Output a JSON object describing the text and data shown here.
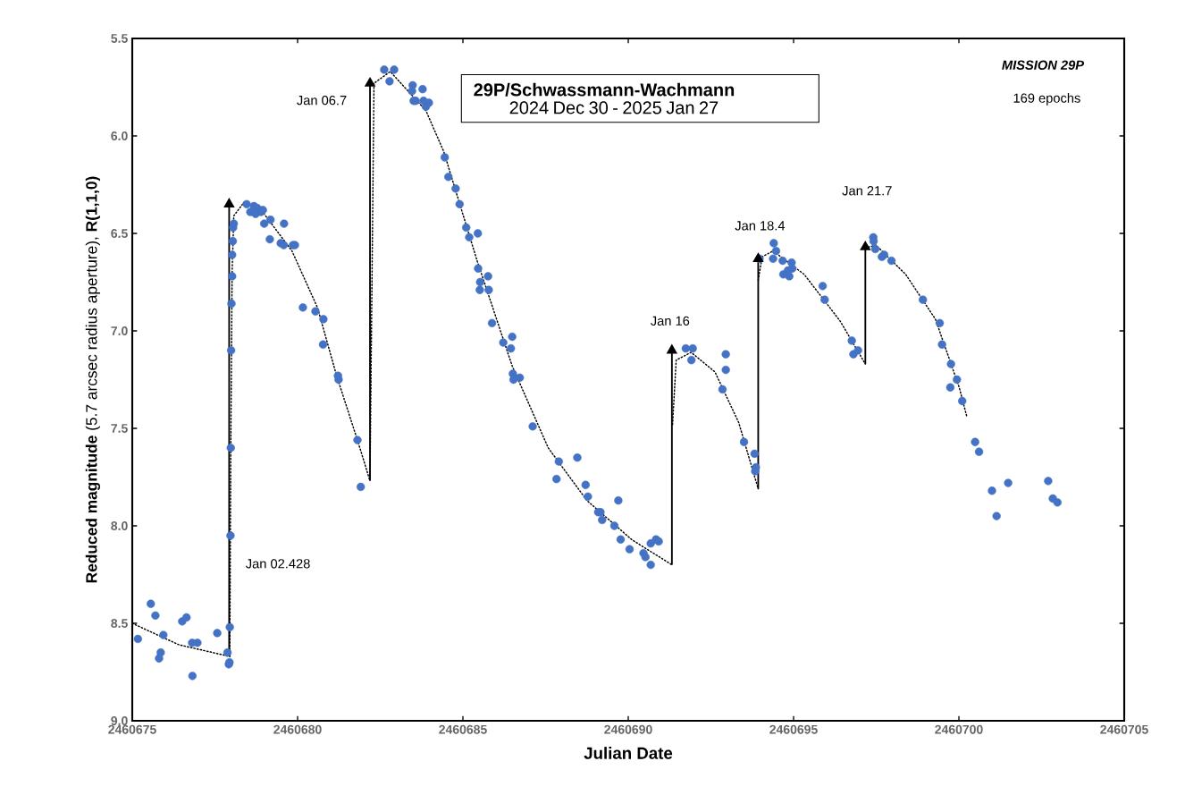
{
  "chart_data": {
    "type": "scatter",
    "title": "29P/Schwassmann-Wachmann",
    "subtitle": "2024 Dec 30 - 2025 Jan 27",
    "xlabel": "Julian Date",
    "ylabel": "**Reduced magnitude** (5.7 arcsec radius aperture),  **R(1,1,0)**",
    "xlim": [
      2460675,
      2460705
    ],
    "xticks": [
      2460675,
      2460680,
      2460685,
      2460690,
      2460695,
      2460700,
      2460705
    ],
    "ylim": [
      9.0,
      5.5
    ],
    "yticks": [
      {
        "value": 5.5,
        "label": "5.5"
      },
      {
        "value": 6,
        "label": "6.0"
      },
      {
        "value": 6.5,
        "label": "6.5"
      },
      {
        "value": 7,
        "label": "7.0"
      },
      {
        "value": 7.5,
        "label": "7.5"
      },
      {
        "value": 8,
        "label": "8.0"
      },
      {
        "value": 8.5,
        "label": "8.5"
      },
      {
        "value": 9,
        "label": "9.0"
      }
    ],
    "series": [
      {
        "type": "scatter",
        "color": "#4472c4",
        "marker": "circle",
        "x": [
          2460675.17,
          2460675.56,
          2460675.7,
          2460675.94,
          2460675.86,
          2460675.81,
          2460676.51,
          2460676.64,
          2460676.81,
          2460676.97,
          2460676.82,
          2460677.57,
          2460677.95,
          2460677.88,
          2460677.94,
          2460677.92,
          2460677.97,
          2460677.98,
          2460677.99,
          2460678.0,
          2460678.02,
          2460678.02,
          2460678.04,
          2460678.05,
          2460678.07,
          2460678.46,
          2460678.57,
          2460678.68,
          2460678.78,
          2460678.89,
          2460678.73,
          2460678.95,
          2460678.99,
          2460679.18,
          2460679.59,
          2460679.16,
          2460679.49,
          2460679.58,
          2460679.86,
          2460679.92,
          2460680.16,
          2460680.54,
          2460680.78,
          2460680.77,
          2460681.22,
          2460681.24,
          2460681.81,
          2460681.91,
          2460682.62,
          2460682.92,
          2460682.78,
          2460683.48,
          2460683.46,
          2460683.78,
          2460683.57,
          2460683.51,
          2460683.81,
          2460683.97,
          2460683.88,
          2460684.45,
          2460684.56,
          2460684.78,
          2460684.9,
          2460685.1,
          2460685.19,
          2460685.45,
          2460685.46,
          2460685.76,
          2460685.52,
          2460685.51,
          2460685.78,
          2460685.88,
          2460686.22,
          2460686.49,
          2460686.45,
          2460686.51,
          2460686.53,
          2460686.72,
          2460687.11,
          2460687.9,
          2460688.46,
          2460687.83,
          2460688.71,
          2460688.78,
          2460689.7,
          2460689.09,
          2460689.16,
          2460689.21,
          2460689.58,
          2460689.77,
          2460690.04,
          2460690.46,
          2460690.52,
          2460690.68,
          2460690.68,
          2460690.84,
          2460690.92,
          2460691.74,
          2460691.95,
          2460691.91,
          2460692.95,
          2460692.95,
          2460692.85,
          2460693.5,
          2460693.82,
          2460693.86,
          2460693.84,
          2460693.97,
          2460694.4,
          2460694.47,
          2460694.38,
          2460694.67,
          2460694.94,
          2460694.69,
          2460694.87,
          2460694.96,
          2460694.83,
          2460695.88,
          2460695.94,
          2460696.76,
          2460696.81,
          2460696.95,
          2460697.41,
          2460697.42,
          2460697.47,
          2460697.67,
          2460697.74,
          2460697.96,
          2460698.91,
          2460699.42,
          2460699.49,
          2460699.76,
          2460699.94,
          2460699.74,
          2460700.1,
          2460700.49,
          2460700.61,
          2460701.0,
          2460701.49,
          2460701.14,
          2460702.7,
          2460702.84,
          2460702.98
        ],
        "values": [
          8.58,
          8.4,
          8.46,
          8.56,
          8.65,
          8.68,
          8.49,
          8.47,
          8.6,
          8.6,
          8.77,
          8.55,
          8.52,
          8.65,
          8.7,
          8.71,
          8.05,
          7.6,
          7.1,
          6.86,
          6.72,
          6.61,
          6.54,
          6.47,
          6.45,
          6.35,
          6.39,
          6.36,
          6.37,
          6.39,
          6.4,
          6.38,
          6.45,
          6.43,
          6.45,
          6.53,
          6.55,
          6.56,
          6.56,
          6.56,
          6.88,
          6.9,
          6.94,
          7.07,
          7.23,
          7.25,
          7.56,
          7.8,
          5.66,
          5.66,
          5.72,
          5.74,
          5.77,
          5.76,
          5.82,
          5.82,
          5.82,
          5.83,
          5.85,
          6.11,
          6.21,
          6.27,
          6.35,
          6.47,
          6.52,
          6.5,
          6.68,
          6.72,
          6.75,
          6.79,
          6.79,
          6.96,
          7.06,
          7.03,
          7.09,
          7.22,
          7.25,
          7.24,
          7.49,
          7.67,
          7.65,
          7.76,
          7.79,
          7.85,
          7.87,
          7.93,
          7.93,
          7.97,
          8.0,
          8.07,
          8.12,
          8.14,
          8.16,
          8.2,
          8.09,
          8.07,
          8.08,
          7.09,
          7.09,
          7.15,
          7.12,
          7.2,
          7.3,
          7.57,
          7.63,
          7.7,
          7.72,
          6.63,
          6.55,
          6.59,
          6.63,
          6.64,
          6.65,
          6.71,
          6.72,
          6.68,
          6.69,
          6.77,
          6.84,
          7.05,
          7.12,
          7.1,
          6.52,
          6.54,
          6.58,
          6.62,
          6.61,
          6.64,
          6.84,
          6.96,
          7.07,
          7.17,
          7.25,
          7.29,
          7.36,
          7.57,
          7.62,
          7.82,
          7.78,
          7.95,
          7.77,
          7.86,
          7.88
        ]
      },
      {
        "type": "line",
        "color": "#000000",
        "marker": "none",
        "line_style": "dotted",
        "x": [
          2460675.0,
          2460676.41,
          2460677.95
        ],
        "values": [
          8.5,
          8.61,
          8.67
        ]
      },
      {
        "type": "line",
        "color": "#000000",
        "marker": "none",
        "line_style": "dotted",
        "x": [
          2460677.95,
          2460677.98,
          2460678.02,
          2460678.07,
          2460678.38,
          2460678.9,
          2460679.83,
          2460680.6,
          2460681.18,
          2460681.81,
          2460682.19
        ],
        "values": [
          8.67,
          7.6,
          6.7,
          6.41,
          6.34,
          6.38,
          6.59,
          6.88,
          7.23,
          7.56,
          7.77
        ]
      },
      {
        "type": "line",
        "color": "#000000",
        "marker": "none",
        "line_style": "dotted",
        "x": [
          2460682.19,
          2460682.31,
          2460682.8,
          2460683.88,
          2460684.42,
          2460685.41,
          2460686.49,
          2460687.58,
          2460688.75,
          2460690.1,
          2460691.32
        ],
        "values": [
          7.76,
          5.73,
          5.67,
          5.87,
          6.08,
          6.63,
          7.18,
          7.6,
          7.87,
          8.07,
          8.2
        ]
      },
      {
        "type": "line",
        "color": "#000000",
        "marker": "none",
        "line_style": "dotted",
        "x": [
          2460691.34,
          2460691.45,
          2460691.9,
          2460692.62,
          2460693.34,
          2460693.93
        ],
        "values": [
          7.48,
          7.15,
          7.11,
          7.21,
          7.47,
          7.81
        ]
      },
      {
        "type": "line",
        "color": "#000000",
        "marker": "none",
        "line_style": "dotted",
        "x": [
          2460693.93,
          2460694.05,
          2460694.38,
          2460695.32,
          2460696.41,
          2460697.17
        ],
        "values": [
          6.74,
          6.62,
          6.59,
          6.71,
          6.95,
          7.17
        ]
      },
      {
        "type": "line",
        "color": "#000000",
        "marker": "none",
        "line_style": "dotted",
        "x": [
          2460697.26,
          2460697.49,
          2460698.39,
          2460699.29,
          2460700.01,
          2460700.24
        ],
        "values": [
          6.57,
          6.56,
          6.71,
          6.94,
          7.29,
          7.44
        ]
      },
      {
        "type": "line",
        "color": "#000000",
        "marker": "triangle",
        "line_style": "solid",
        "x": [
          2460677.93,
          2460677.93
        ],
        "values": [
          8.67,
          6.35
        ]
      },
      {
        "type": "line",
        "color": "#000000",
        "marker": "triangle",
        "line_style": "solid",
        "x": [
          2460682.19,
          2460682.19
        ],
        "values": [
          7.77,
          5.73
        ]
      },
      {
        "type": "line",
        "color": "#000000",
        "marker": "triangle",
        "line_style": "solid",
        "x": [
          2460691.32,
          2460691.32
        ],
        "values": [
          8.2,
          7.1
        ]
      },
      {
        "type": "line",
        "color": "#000000",
        "marker": "triangle",
        "line_style": "solid",
        "x": [
          2460693.93,
          2460693.93
        ],
        "values": [
          7.81,
          6.63
        ]
      },
      {
        "type": "line",
        "color": "#000000",
        "marker": "triangle",
        "line_style": "solid",
        "x": [
          2460697.17,
          2460697.17
        ],
        "values": [
          7.17,
          6.57
        ]
      }
    ],
    "annotations": [
      "Jan 02.428",
      "Jan 06.7",
      "Jan 16",
      "Jan 18.4",
      "Jan 21.7",
      "169 epochs",
      "MISSION 29P"
    ]
  }
}
